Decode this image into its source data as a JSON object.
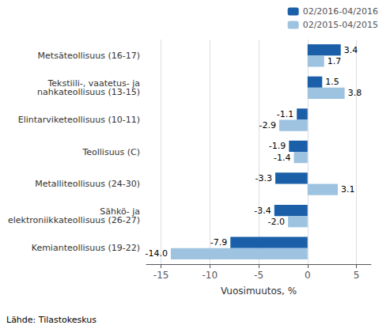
{
  "chart_data": {
    "type": "bar",
    "orientation": "horizontal",
    "categories": [
      "Kemianteollisuus (19-22)",
      "Sähkö- ja\nelektroniikkateollisuus (26-27)",
      "Metalliteollisuus (24-30)",
      "Teollisuus (C)",
      "Elintarviketeollisuus (10-11)",
      "Tekstiili-, vaatetus- ja\nnahkateollisuus (13-15)",
      "Metsäteollisuus (16-17)"
    ],
    "series": [
      {
        "name": "02/2016-04/2016",
        "color": "#1a5fa8",
        "values": [
          -7.9,
          -3.4,
          -3.3,
          -1.9,
          -1.1,
          1.5,
          3.4
        ]
      },
      {
        "name": "02/2015-04/2015",
        "color": "#9dc3e0",
        "values": [
          -14.0,
          -2.0,
          3.1,
          -1.4,
          -2.9,
          3.8,
          1.7
        ],
        "value_labels": [
          "-14.0",
          "-2.0",
          "3.1",
          "-1.4",
          "-2.9",
          "3.8",
          "1.7"
        ]
      }
    ],
    "xlabel": "Vuosimuutos, %",
    "xlim": [
      -16.5,
      6.5
    ],
    "xticks": [
      -15,
      -10,
      -5,
      0,
      5
    ],
    "grid": true,
    "legend": "upper right",
    "data_labels": true,
    "annotations": [
      "Lähde: Tilastokeskus"
    ]
  }
}
